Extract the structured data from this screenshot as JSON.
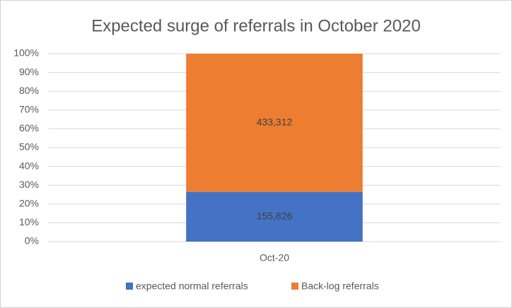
{
  "chart_data": {
    "type": "bar",
    "stacking": "percent",
    "title": "Expected surge of referrals in October 2020",
    "categories": [
      "Oct-20"
    ],
    "series": [
      {
        "name": "expected normal referrals",
        "color": "#4472c4",
        "values": [
          155826
        ],
        "value_labels": [
          "155,826"
        ]
      },
      {
        "name": "Back-log referrals",
        "color": "#ed7d31",
        "values": [
          433312
        ],
        "value_labels": [
          "433,312"
        ]
      }
    ],
    "ylim": [
      0,
      100
    ],
    "yticks": [
      {
        "value": 0,
        "label": "0%"
      },
      {
        "value": 10,
        "label": "10%"
      },
      {
        "value": 20,
        "label": "20%"
      },
      {
        "value": 30,
        "label": "30%"
      },
      {
        "value": 40,
        "label": "40%"
      },
      {
        "value": 50,
        "label": "50%"
      },
      {
        "value": 60,
        "label": "60%"
      },
      {
        "value": 70,
        "label": "70%"
      },
      {
        "value": 80,
        "label": "80%"
      },
      {
        "value": 90,
        "label": "90%"
      },
      {
        "value": 100,
        "label": "100%"
      }
    ],
    "grid": true,
    "legend": "bottom"
  }
}
